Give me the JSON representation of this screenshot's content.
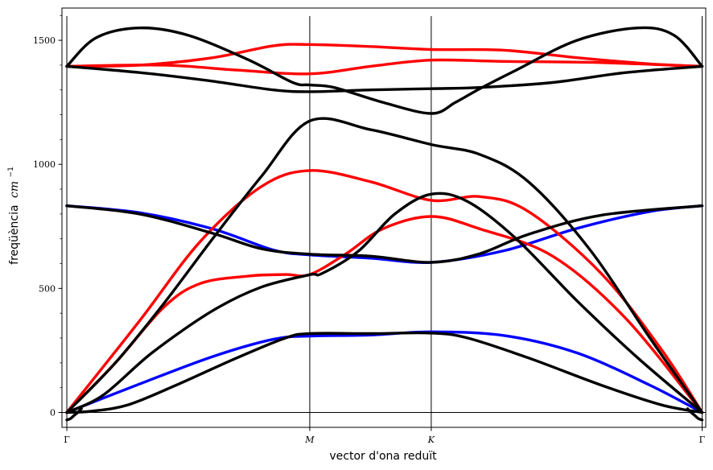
{
  "chart_data": {
    "type": "line",
    "xlabel": "vector d'ona reduït",
    "ylabel": "freqüència",
    "ylabel_unit": "cm",
    "ylabel_unit_exp": "−1",
    "ylim": [
      -60,
      1630
    ],
    "xlim": [
      -0.02,
      2.63
    ],
    "yticks": [
      0,
      500,
      1000,
      1500
    ],
    "ytick_labels": [
      "0",
      "500",
      "1000",
      "1500"
    ],
    "xticks": [
      {
        "x": 0,
        "label": "Γ"
      },
      {
        "x": 1,
        "label": "M"
      },
      {
        "x": 1.5,
        "label": "K"
      },
      {
        "x": 2.615,
        "label": "Γ"
      }
    ],
    "high_symmetry_x": [
      0,
      1,
      1.5,
      2.615
    ],
    "colors": {
      "black": "#000000",
      "red": "#ff0000",
      "blue": "#0000ff"
    },
    "series": [
      {
        "color": "blue",
        "points": [
          [
            0,
            0
          ],
          [
            0.3,
            115
          ],
          [
            0.6,
            225
          ],
          [
            0.85,
            295
          ],
          [
            1,
            308
          ],
          [
            1.25,
            312
          ],
          [
            1.5,
            325
          ],
          [
            1.8,
            310
          ],
          [
            2.1,
            240
          ],
          [
            2.4,
            110
          ],
          [
            2.615,
            0
          ]
        ]
      },
      {
        "color": "blue",
        "points": [
          [
            0,
            833
          ],
          [
            0.3,
            805
          ],
          [
            0.6,
            740
          ],
          [
            0.85,
            655
          ],
          [
            1,
            635
          ],
          [
            1.25,
            622
          ],
          [
            1.5,
            605
          ],
          [
            1.8,
            652
          ],
          [
            2.1,
            742
          ],
          [
            2.4,
            810
          ],
          [
            2.615,
            833
          ]
        ]
      },
      {
        "color": "red",
        "points": [
          [
            0,
            0
          ],
          [
            0.2,
            200
          ],
          [
            0.4,
            425
          ],
          [
            0.55,
            520
          ],
          [
            0.75,
            550
          ],
          [
            0.9,
            556
          ],
          [
            1,
            556
          ],
          [
            1.15,
            640
          ],
          [
            1.3,
            740
          ],
          [
            1.5,
            790
          ],
          [
            1.7,
            740
          ],
          [
            2,
            630
          ],
          [
            2.3,
            380
          ],
          [
            2.615,
            0
          ]
        ]
      },
      {
        "color": "red",
        "points": [
          [
            0,
            0
          ],
          [
            0.3,
            370
          ],
          [
            0.55,
            690
          ],
          [
            0.8,
            910
          ],
          [
            1,
            975
          ],
          [
            1.25,
            930
          ],
          [
            1.5,
            855
          ],
          [
            1.7,
            870
          ],
          [
            1.9,
            810
          ],
          [
            2.2,
            560
          ],
          [
            2.45,
            250
          ],
          [
            2.615,
            0
          ]
        ]
      },
      {
        "color": "red",
        "points": [
          [
            0,
            1395
          ],
          [
            0.4,
            1400
          ],
          [
            0.7,
            1380
          ],
          [
            1,
            1365
          ],
          [
            1.25,
            1395
          ],
          [
            1.5,
            1420
          ],
          [
            1.8,
            1415
          ],
          [
            2.2,
            1410
          ],
          [
            2.615,
            1395
          ]
        ]
      },
      {
        "color": "red",
        "points": [
          [
            0,
            1395
          ],
          [
            0.3,
            1400
          ],
          [
            0.6,
            1430
          ],
          [
            0.85,
            1478
          ],
          [
            1,
            1483
          ],
          [
            1.25,
            1475
          ],
          [
            1.5,
            1463
          ],
          [
            1.8,
            1460
          ],
          [
            2.1,
            1430
          ],
          [
            2.4,
            1405
          ],
          [
            2.615,
            1395
          ]
        ]
      },
      {
        "color": "black",
        "points": [
          [
            0,
            0
          ],
          [
            0.1,
            5
          ],
          [
            0.25,
            30
          ],
          [
            0.45,
            110
          ],
          [
            0.7,
            220
          ],
          [
            0.9,
            300
          ],
          [
            1,
            318
          ],
          [
            1.25,
            318
          ],
          [
            1.5,
            320
          ],
          [
            1.65,
            300
          ],
          [
            1.9,
            220
          ],
          [
            2.2,
            110
          ],
          [
            2.45,
            30
          ],
          [
            2.615,
            0
          ]
        ]
      },
      {
        "color": "black",
        "points": [
          [
            0,
            0
          ],
          [
            0.15,
            70
          ],
          [
            0.35,
            240
          ],
          [
            0.6,
            410
          ],
          [
            0.8,
            505
          ],
          [
            1,
            555
          ],
          [
            1.05,
            560
          ],
          [
            1.2,
            650
          ],
          [
            1.35,
            800
          ],
          [
            1.5,
            880
          ],
          [
            1.65,
            850
          ],
          [
            1.85,
            700
          ],
          [
            2.1,
            450
          ],
          [
            2.35,
            220
          ],
          [
            2.615,
            0
          ]
        ]
      },
      {
        "color": "black",
        "points": [
          [
            0,
            0
          ],
          [
            0.2,
            200
          ],
          [
            0.4,
            440
          ],
          [
            0.6,
            700
          ],
          [
            0.8,
            950
          ],
          [
            1,
            1175
          ],
          [
            1.25,
            1140
          ],
          [
            1.5,
            1080
          ],
          [
            1.7,
            1040
          ],
          [
            1.9,
            930
          ],
          [
            2.15,
            660
          ],
          [
            2.4,
            300
          ],
          [
            2.615,
            0
          ]
        ]
      },
      {
        "color": "black",
        "points": [
          [
            0,
            833
          ],
          [
            0.3,
            800
          ],
          [
            0.6,
            722
          ],
          [
            0.8,
            660
          ],
          [
            1,
            638
          ],
          [
            1.25,
            630
          ],
          [
            1.5,
            605
          ],
          [
            1.7,
            640
          ],
          [
            1.9,
            718
          ],
          [
            2.2,
            795
          ],
          [
            2.615,
            833
          ]
        ]
      },
      {
        "color": "black",
        "points": [
          [
            0,
            1395
          ],
          [
            0.3,
            1370
          ],
          [
            0.6,
            1335
          ],
          [
            0.85,
            1300
          ],
          [
            1,
            1293
          ],
          [
            1.25,
            1300
          ],
          [
            1.5,
            1305
          ],
          [
            1.7,
            1310
          ],
          [
            2,
            1330
          ],
          [
            2.3,
            1370
          ],
          [
            2.615,
            1395
          ]
        ]
      },
      {
        "color": "black",
        "points": [
          [
            0,
            1395
          ],
          [
            0.12,
            1510
          ],
          [
            0.3,
            1550
          ],
          [
            0.5,
            1520
          ],
          [
            0.75,
            1420
          ],
          [
            0.93,
            1330
          ],
          [
            1,
            1320
          ],
          [
            1.1,
            1310
          ],
          [
            1.3,
            1250
          ],
          [
            1.5,
            1205
          ],
          [
            1.6,
            1250
          ],
          [
            1.7,
            1305
          ],
          [
            1.85,
            1380
          ],
          [
            2.1,
            1500
          ],
          [
            2.35,
            1550
          ],
          [
            2.5,
            1520
          ],
          [
            2.615,
            1395
          ]
        ]
      },
      {
        "color": "black",
        "points": [
          [
            0,
            -30
          ],
          [
            0.015,
            -25
          ],
          [
            0.03,
            -12
          ],
          [
            0.045,
            0
          ],
          [
            0.06,
            15
          ]
        ]
      },
      {
        "color": "black",
        "points": [
          [
            2.555,
            15
          ],
          [
            2.57,
            0
          ],
          [
            2.585,
            -12
          ],
          [
            2.6,
            -25
          ],
          [
            2.615,
            -30
          ]
        ]
      }
    ]
  }
}
